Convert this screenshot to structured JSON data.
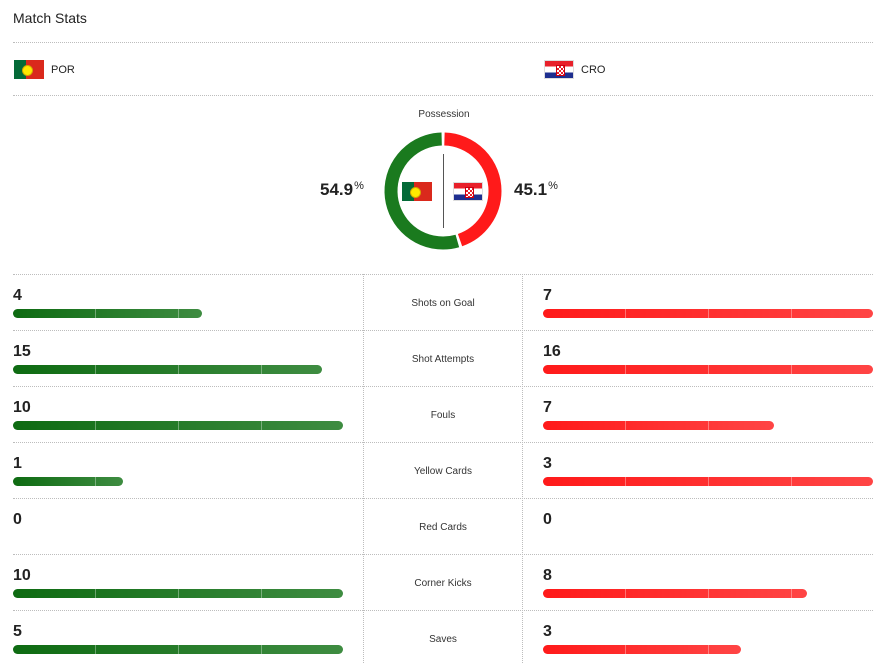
{
  "header": {
    "title": "Match Stats"
  },
  "teams": {
    "home": {
      "abbr": "POR",
      "flag": "portugal-flag",
      "color": "#1a7a1e"
    },
    "away": {
      "abbr": "CRO",
      "flag": "croatia-flag",
      "color": "#ff1a1a"
    }
  },
  "possession": {
    "label": "Possession",
    "home_value": "54.9",
    "away_value": "45.1",
    "home": 54.9,
    "away": 45.1,
    "unit": "%"
  },
  "stats": [
    {
      "label": "Shots on Goal",
      "home": 4,
      "away": 7
    },
    {
      "label": "Shot Attempts",
      "home": 15,
      "away": 16
    },
    {
      "label": "Fouls",
      "home": 10,
      "away": 7
    },
    {
      "label": "Yellow Cards",
      "home": 1,
      "away": 3
    },
    {
      "label": "Red Cards",
      "home": 0,
      "away": 0
    },
    {
      "label": "Corner Kicks",
      "home": 10,
      "away": 8
    },
    {
      "label": "Saves",
      "home": 5,
      "away": 3
    }
  ]
}
